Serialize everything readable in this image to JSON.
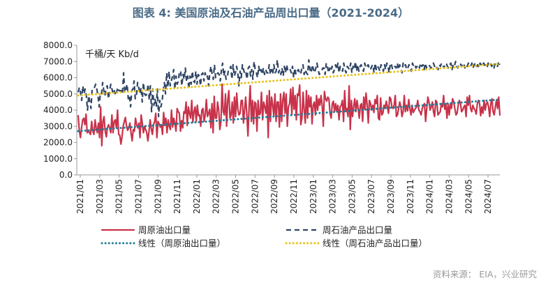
{
  "chart_data": {
    "type": "line",
    "title": "图表 4:  美国原油及石油产品周出口量（2021-2024）",
    "unit_label": "千桶/天 Kb/d",
    "source": "资料来源：  EIA，兴业研究",
    "ylim": [
      0,
      8000
    ],
    "y_ticks": [
      "0.0",
      "1000.0",
      "2000.0",
      "3000.0",
      "4000.0",
      "5000.0",
      "6000.0",
      "7000.0",
      "8000.0"
    ],
    "x_ticks": [
      "2021/01",
      "2021/03",
      "2021/05",
      "2021/07",
      "2021/09",
      "2021/11",
      "2022/01",
      "2022/03",
      "2022/05",
      "2022/07",
      "2022/09",
      "2022/11",
      "2023/01",
      "2023/03",
      "2023/05",
      "2023/07",
      "2023/09",
      "2023/11",
      "2024/01",
      "2024/03",
      "2024/05",
      "2024/07"
    ],
    "colors": {
      "crude": "#c8324a",
      "products": "#2f4565",
      "crude_trend": "#1f7f9a",
      "products_trend": "#e8c21a",
      "title": "#4a6b87"
    },
    "series": [
      {
        "name": "周原油出口量",
        "style": "solid",
        "values": [
          3650,
          2750,
          2300,
          2900,
          3400,
          3500,
          3100,
          3750,
          2600,
          2750,
          2600,
          2500,
          3300,
          2700,
          2500,
          3400,
          2900,
          2600,
          3200,
          2300,
          4200,
          1800,
          3300,
          3600,
          2700,
          2350,
          2900,
          3100,
          2900,
          2600,
          3700,
          2600,
          3300,
          3400,
          2900,
          4000,
          2500,
          2450,
          1900,
          2350,
          3000,
          3300,
          3550,
          3000,
          2750,
          2900,
          3200,
          2600,
          2100,
          2800,
          2700,
          3500,
          3100,
          2900,
          3200,
          2300,
          3700,
          3200,
          2600,
          3000,
          2800,
          2600,
          2100,
          2700,
          3400,
          2850,
          2500,
          3100,
          3300,
          3800,
          2300,
          3300,
          3150,
          2950,
          3100,
          2500,
          3850,
          3050,
          3500,
          2600,
          3400,
          3000,
          2800,
          4000,
          2950,
          3500,
          3200,
          2700,
          4100,
          3900,
          3800,
          2700,
          3350,
          2900,
          3900,
          3800,
          4500,
          3050,
          4200,
          3800,
          3500,
          4600,
          3250,
          3900,
          4200,
          3300,
          4300,
          3650,
          3700,
          3000,
          4000,
          4100,
          3300,
          3700,
          4650,
          3600,
          3800,
          4050,
          2900,
          4400,
          2600,
          4850,
          3500,
          3500,
          4500,
          4000,
          2800,
          3300,
          5600,
          3900,
          3700,
          5000,
          3000,
          4600,
          5200,
          3500,
          3700,
          4500,
          3200,
          4800,
          3600,
          5050,
          4050,
          3700,
          3800,
          4600,
          4600,
          3200,
          4050,
          4800,
          3700,
          2400,
          4200,
          5500,
          3300,
          4600,
          3150,
          4500,
          4400,
          2700,
          4600,
          3700,
          3800,
          5100,
          3400,
          4500,
          4200,
          3800,
          4900,
          2300,
          5200,
          3300,
          4800,
          4350,
          3600,
          5000,
          3300,
          4500,
          4500,
          2950,
          5000,
          3300,
          4650,
          5100,
          3800,
          5000,
          3000,
          4200,
          4400,
          5300,
          3700,
          5400,
          4050,
          4900,
          3400,
          5000,
          4900,
          5550,
          3100,
          3500,
          5100,
          4000,
          3200,
          5200,
          3500,
          4900,
          4200,
          4800,
          3150,
          4300,
          4500,
          3700,
          4900,
          4000,
          4700,
          4300,
          4900,
          4300,
          3000,
          5150,
          4700,
          4550,
          4800,
          4700,
          3800,
          3500,
          4400,
          4550,
          3900,
          4400,
          3900,
          4300,
          3400,
          4200,
          4300,
          4600,
          3300,
          5200,
          3900,
          4100,
          3600,
          5500,
          2800,
          4600,
          3600,
          4200,
          4700,
          3900,
          4600,
          4100,
          3500,
          4300,
          4400,
          3300,
          4800,
          4050,
          5050,
          4350,
          3200,
          4600,
          4400,
          4000,
          4300,
          3850,
          4650,
          4400,
          4900,
          3500,
          3400,
          4750,
          3700,
          3800,
          4300,
          4100,
          4550,
          4200,
          3800,
          4800,
          4700,
          4200,
          4100,
          4300,
          4900,
          3600,
          3700,
          4100,
          4500,
          4200,
          3600,
          3900,
          4900,
          3900,
          4300,
          3950,
          4650,
          4100,
          3700,
          4300,
          3850,
          4000,
          4100,
          4200,
          4600,
          4000,
          3900,
          3700,
          4100,
          4300,
          4400,
          3300,
          4100,
          4800,
          4500,
          4000,
          4200,
          4500,
          3900,
          3600,
          4600,
          4500,
          3700,
          3800,
          3900,
          4400,
          4200,
          4900,
          4050,
          4400,
          3500,
          4400,
          3700,
          4400,
          4100,
          4700,
          4500,
          4100,
          3700,
          3800,
          4300,
          4600,
          4400,
          3900,
          4000,
          4200,
          4300,
          3600,
          4800,
          4300,
          4900,
          4100,
          3900,
          4300,
          4100,
          4000,
          3750,
          4400,
          4600,
          4400,
          3650,
          4200,
          3800,
          4600,
          4000,
          4400,
          4500,
          4200,
          3600,
          4400,
          4700,
          3900,
          3700,
          4200,
          4600,
          4100,
          4800,
          3700
        ]
      },
      {
        "name": "周石油产品出口量",
        "style": "dashed",
        "values": [
          5100,
          5400,
          5100,
          4600,
          5500,
          5000,
          5300,
          4900,
          4000,
          4900,
          4500,
          4100,
          5300,
          5300,
          5400,
          5600,
          5300,
          4900,
          4200,
          5000,
          4950,
          5700,
          5200,
          4900,
          5400,
          5500,
          4700,
          5200,
          5600,
          5300,
          5000,
          5200,
          4900,
          5100,
          5400,
          5200,
          5200,
          5200,
          5000,
          6300,
          5100,
          5300,
          5600,
          4700,
          4900,
          4200,
          5200,
          5300,
          5800,
          4700,
          4900,
          5700,
          5400,
          5000,
          5400,
          4500,
          5700,
          5000,
          4900,
          5000,
          5600,
          4600,
          5500,
          3900,
          5300,
          4300,
          4700,
          4200,
          5300,
          3600,
          4600,
          4200,
          4500,
          5200,
          5700,
          5000,
          6300,
          5400,
          6400,
          5500,
          5800,
          6100,
          6500,
          5300,
          6100,
          5600,
          5800,
          6400,
          6400,
          5500,
          6200,
          5900,
          6600,
          5800,
          6100,
          5300,
          6100,
          5600,
          6400,
          5800,
          5700,
          6400,
          5600,
          6200,
          6100,
          5500,
          6200,
          6300,
          5800,
          6300,
          6000,
          6100,
          5500,
          6300,
          6700,
          6200,
          5900,
          6800,
          6000,
          6200,
          6300,
          6200,
          5800,
          6500,
          6900,
          6100,
          6400,
          5900,
          6000,
          6500,
          6500,
          6700,
          5900,
          6800,
          6100,
          6300,
          6700,
          6300,
          5500,
          6400,
          6000,
          6800,
          6500,
          6200,
          6300,
          5900,
          6600,
          6700,
          6100,
          6500,
          5900,
          7000,
          6500,
          6300,
          6000,
          6700,
          6300,
          6500,
          6200,
          6600,
          6200,
          6500,
          6300,
          6300,
          6800,
          6200,
          6500,
          6200,
          6800,
          6300,
          6400,
          7100,
          6300,
          6500,
          6200,
          6600,
          6100,
          6700,
          6300,
          6800,
          6400,
          6500,
          6500,
          6300,
          6700,
          6000,
          6600,
          6200,
          6400,
          6500,
          6300,
          6200,
          6600,
          6800,
          6200,
          6500,
          6300,
          6200,
          7100,
          6500,
          6300,
          6800,
          6500,
          6300,
          6600,
          6900,
          6500,
          6200,
          6300,
          6400,
          6600,
          6600,
          6200,
          6900,
          6700,
          6300,
          6600,
          6400,
          6700,
          6300,
          6500,
          6800,
          6500,
          6900,
          6300,
          6700,
          6600,
          6400,
          6900,
          6500,
          6300,
          6700,
          6600,
          6500,
          6900,
          6300,
          6700,
          6500,
          7000,
          6400,
          6800,
          6400,
          6700,
          6800,
          6500,
          6400,
          6900,
          6600,
          6700,
          6800,
          6500,
          6500,
          6700,
          6800,
          6300,
          6900,
          6500,
          6700,
          6600,
          6400,
          6800,
          6700,
          6400,
          6800,
          6500,
          6900,
          6700,
          6300,
          6900,
          6800,
          6500,
          6600,
          6700,
          6600,
          6900,
          6500,
          6800,
          6600,
          6300,
          6900,
          6700,
          6800,
          6500,
          6600,
          6800,
          6600,
          6400,
          6900,
          6700,
          6800,
          6600,
          6700,
          6800,
          6600,
          6900,
          6700,
          6800,
          6500,
          6900,
          6600,
          6800,
          6800,
          6700,
          6600,
          6800,
          6900,
          6700,
          6800,
          6600,
          6500,
          6800,
          6700,
          6900,
          6800,
          6600,
          6800,
          6900,
          6700,
          6600,
          6800,
          6900,
          6500,
          6800,
          6700,
          7000,
          6700,
          6600,
          6800,
          6900,
          6700,
          6800,
          6900,
          6600,
          6800,
          6700,
          6900,
          6800,
          6700,
          6900,
          6600,
          6800,
          6900,
          6700,
          6800,
          6600,
          6900,
          6800,
          6700,
          6900,
          6800,
          6700,
          6600,
          6900,
          6800,
          6900,
          6700,
          6800,
          6600,
          6900,
          6800,
          6700,
          7000,
          6800
        ]
      },
      {
        "name": "线性（周原油出口量）",
        "style": "dotted",
        "values": [
          2700,
          4650
        ]
      },
      {
        "name": "线性（周石油产品出口量）",
        "style": "dotted",
        "values": [
          4900,
          6850
        ]
      }
    ],
    "legend": [
      "周原油出口量",
      "周石油产品出口量",
      "线性（周原油出口量）",
      "线性（周石油产品出口量）"
    ],
    "legend_position": "bottom",
    "grid": false
  }
}
